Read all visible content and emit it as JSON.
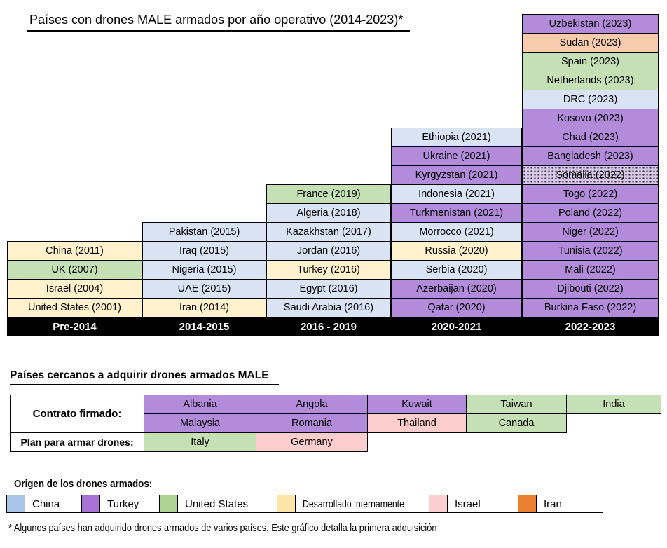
{
  "title": "Países con drones MALE armados por año operativo (2014-2023)*",
  "footnote": "* Algunos países han adquirido drones armados de varios países. Este gráfico detalla la primera adquisición",
  "colors": {
    "cell": {
      "china": "#DAE3F3",
      "turkey": "#B28CDB",
      "us": "#C5E0B4",
      "internal": "#FFF2CC",
      "israel": "#FBCDCD",
      "iran": "#F8CBAD",
      "unknown": "#D9C8EC"
    },
    "legend": {
      "china": "#A9C5E8",
      "turkey": "#A873D4",
      "us": "#AED194",
      "internal": "#FBE5A8",
      "israel": "#FBCFD0",
      "iran": "#E8812F"
    }
  },
  "chart_data": {
    "type": "table",
    "title": "Países con drones MALE armados por año operativo (2014-2023)*",
    "legend_title": "Origen de los drones armados:",
    "columns": [
      {
        "header": "Pre-2014",
        "cells": [
          {
            "label": "China (2011)",
            "origin": "internal"
          },
          {
            "label": "UK (2007)",
            "origin": "us"
          },
          {
            "label": "Israel (2004)",
            "origin": "internal"
          },
          {
            "label": "United States (2001)",
            "origin": "internal"
          }
        ]
      },
      {
        "header": "2014-2015",
        "cells": [
          {
            "label": "Pakistan (2015)",
            "origin": "china"
          },
          {
            "label": "Iraq (2015)",
            "origin": "china"
          },
          {
            "label": "Nigeria (2015)",
            "origin": "china"
          },
          {
            "label": "UAE (2015)",
            "origin": "china"
          },
          {
            "label": "Iran (2014)",
            "origin": "internal"
          }
        ]
      },
      {
        "header": "2016 - 2019",
        "cells": [
          {
            "label": "France (2019)",
            "origin": "us"
          },
          {
            "label": "Algeria (2018)",
            "origin": "china"
          },
          {
            "label": "Kazakhstan (2017)",
            "origin": "china"
          },
          {
            "label": "Jordan (2016)",
            "origin": "china"
          },
          {
            "label": "Turkey (2016)",
            "origin": "internal"
          },
          {
            "label": "Egypt (2016)",
            "origin": "china"
          },
          {
            "label": "Saudi Arabia (2016)",
            "origin": "china"
          }
        ]
      },
      {
        "header": "2020-2021",
        "cells": [
          {
            "label": "Ethiopia (2021)",
            "origin": "china"
          },
          {
            "label": "Ukraine (2021)",
            "origin": "turkey"
          },
          {
            "label": "Kyrgyzstan (2021)",
            "origin": "turkey"
          },
          {
            "label": "Indonesia (2021)",
            "origin": "china"
          },
          {
            "label": "Turkmenistan (2021)",
            "origin": "turkey"
          },
          {
            "label": "Morrocco (2021)",
            "origin": "china"
          },
          {
            "label": "Russia (2020)",
            "origin": "internal"
          },
          {
            "label": "Serbia (2020)",
            "origin": "china"
          },
          {
            "label": "Azerbaijan (2020)",
            "origin": "turkey"
          },
          {
            "label": "Qatar (2020)",
            "origin": "turkey"
          }
        ]
      },
      {
        "header": "2022-2023",
        "cells": [
          {
            "label": "Uzbekistan (2023)",
            "origin": "turkey"
          },
          {
            "label": "Sudan (2023)",
            "origin": "iran"
          },
          {
            "label": "Spain (2023)",
            "origin": "us"
          },
          {
            "label": "Netherlands (2023)",
            "origin": "us"
          },
          {
            "label": "DRC (2023)",
            "origin": "china"
          },
          {
            "label": "Kosovo (2023)",
            "origin": "turkey"
          },
          {
            "label": "Chad (2023)",
            "origin": "turkey"
          },
          {
            "label": "Bangladesh (2023)",
            "origin": "turkey"
          },
          {
            "label": "Somalia (2022)",
            "origin": "unknown",
            "pattern": "dotted"
          },
          {
            "label": "Togo (2022)",
            "origin": "turkey"
          },
          {
            "label": "Poland (2022)",
            "origin": "turkey"
          },
          {
            "label": "Niger (2022)",
            "origin": "turkey"
          },
          {
            "label": "Tunisia (2022)",
            "origin": "turkey"
          },
          {
            "label": "Mali (2022)",
            "origin": "turkey"
          },
          {
            "label": "Djibouti (2022)",
            "origin": "turkey"
          },
          {
            "label": "Burkina Faso (2022)",
            "origin": "turkey"
          }
        ]
      }
    ]
  },
  "acquiring": {
    "heading": "Países cercanos a adquirir drones armados MALE",
    "row_labels": [
      {
        "label": "Contrato firmado:"
      },
      {
        "label": "Plan para armar drones:"
      }
    ],
    "rows": [
      {
        "cells": [
          {
            "label": "Albania",
            "origin": "turkey"
          },
          {
            "label": "Angola",
            "origin": "turkey"
          },
          {
            "label": "Kuwait",
            "origin": "turkey"
          },
          {
            "label": "Taiwan",
            "origin": "us"
          },
          {
            "label": "India",
            "origin": "us"
          }
        ]
      },
      {
        "cells": [
          {
            "label": "Malaysia",
            "origin": "turkey"
          },
          {
            "label": "Romania",
            "origin": "turkey"
          },
          {
            "label": "Thailand",
            "origin": "israel"
          },
          {
            "label": "Canada",
            "origin": "us"
          }
        ]
      },
      {
        "cells": [
          {
            "label": "Italy",
            "origin": "us"
          },
          {
            "label": "Germany",
            "origin": "israel"
          }
        ]
      }
    ]
  },
  "legend": {
    "heading": "Origen de los drones armados:",
    "entries": [
      {
        "label": "China",
        "origin": "china"
      },
      {
        "label": "Turkey",
        "origin": "turkey"
      },
      {
        "label": "United States",
        "origin": "us"
      },
      {
        "label": "Desarrollado internamente",
        "origin": "internal"
      },
      {
        "label": "Israel",
        "origin": "israel"
      },
      {
        "label": "Iran",
        "origin": "iran"
      }
    ]
  }
}
